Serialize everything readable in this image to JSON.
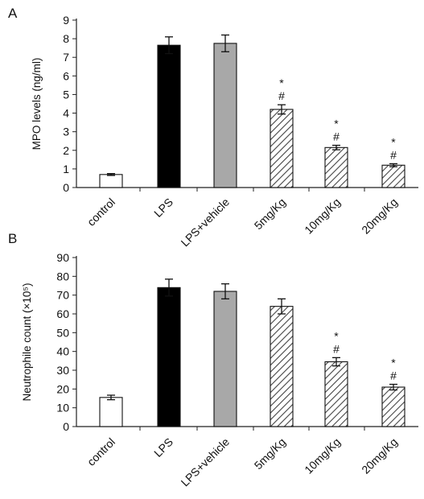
{
  "chart_data": [
    {
      "type": "bar",
      "panel_label": "A",
      "title": "",
      "xlabel": "",
      "ylabel": "MPO levels (ng/ml)",
      "ylim": [
        0,
        9
      ],
      "yticks": [
        "0",
        "1",
        "2",
        "3",
        "4",
        "5",
        "6",
        "7",
        "8",
        "9"
      ],
      "categories": [
        "control",
        "LPS",
        "LPS+vehicle",
        "5mg/Kg",
        "10mg/Kg",
        "20mg/Kg"
      ],
      "values": [
        0.7,
        7.65,
        7.75,
        4.2,
        2.15,
        1.2
      ],
      "errors": [
        0.05,
        0.45,
        0.45,
        0.25,
        0.12,
        0.08
      ],
      "fills": [
        "white",
        "#000000",
        "#a8a8a8",
        "hatch",
        "hatch",
        "hatch"
      ],
      "annotations": [
        "",
        "",
        "",
        "*\n#",
        "*\n#",
        "*\n#"
      ],
      "grid": false
    },
    {
      "type": "bar",
      "panel_label": "B",
      "title": "",
      "xlabel": "",
      "ylabel": "Neutrophile count (×10⁵)",
      "ylim": [
        0,
        90
      ],
      "yticks": [
        "0",
        "10",
        "20",
        "30",
        "40",
        "50",
        "60",
        "70",
        "80",
        "90"
      ],
      "categories": [
        "control",
        "LPS",
        "LPS+vehicle",
        "5mg/Kg",
        "10mg/Kg",
        "20mg/Kg"
      ],
      "values": [
        15.5,
        74,
        72,
        64,
        34.5,
        21
      ],
      "errors": [
        1.2,
        4.5,
        4.0,
        4.0,
        2.2,
        1.5
      ],
      "fills": [
        "white",
        "#000000",
        "#a8a8a8",
        "hatch",
        "hatch",
        "hatch"
      ],
      "annotations": [
        "",
        "",
        "",
        "",
        "*\n#",
        "*\n#"
      ],
      "grid": false
    }
  ]
}
